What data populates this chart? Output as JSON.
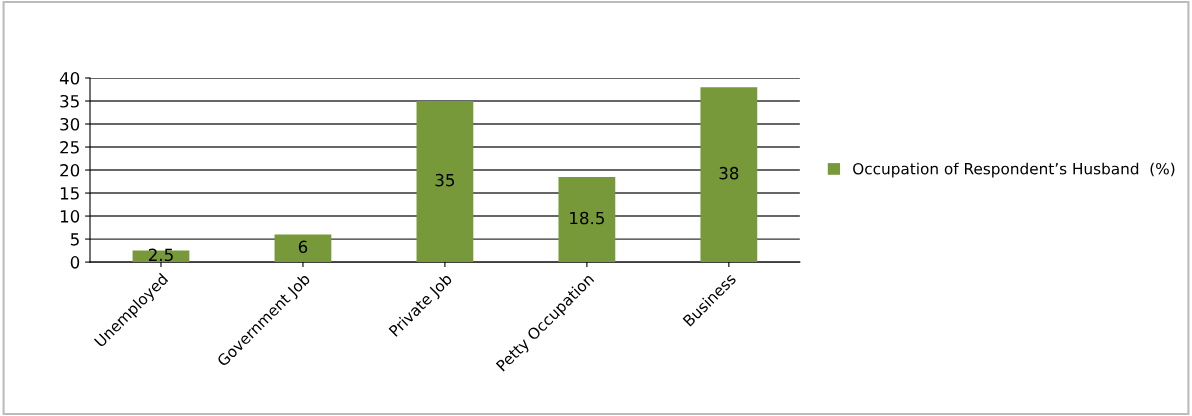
{
  "chart_data": {
    "type": "bar",
    "categories": [
      "Unemployed",
      "Government Job",
      "Private Job",
      "Petty Occupation",
      "Business"
    ],
    "series": [
      {
        "name": "Occupation of Respondent’s Husband  (%)",
        "color": "#77993a",
        "values": [
          2.5,
          6,
          35,
          18.5,
          38
        ]
      }
    ],
    "ylim": [
      0,
      40
    ],
    "yticks": [
      0,
      5,
      10,
      15,
      20,
      25,
      30,
      35,
      40
    ],
    "grid": "y",
    "legend": "right",
    "data_labels": true
  }
}
